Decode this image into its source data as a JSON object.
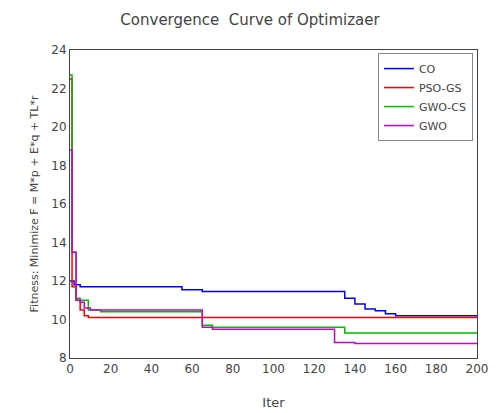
{
  "chart_data": {
    "type": "line",
    "title": "Convergence  Curve of Optimizaer",
    "xlabel": "Iter",
    "ylabel": "Fitness: Minimize F = M*p + E*q + TL*r",
    "xlim": [
      0,
      200
    ],
    "ylim": [
      8,
      24
    ],
    "xticks": [
      0,
      20,
      40,
      60,
      80,
      100,
      120,
      140,
      160,
      180,
      200
    ],
    "yticks": [
      8,
      10,
      12,
      14,
      16,
      18,
      20,
      22,
      24
    ],
    "grid": false,
    "legend": "upper right",
    "series": [
      {
        "name": "CO",
        "color": "#0000FF",
        "x": [
          0,
          2,
          2,
          5,
          5,
          55,
          55,
          65,
          65,
          130,
          130,
          135,
          135,
          140,
          140,
          145,
          145,
          150,
          150,
          155,
          155,
          160,
          160,
          200
        ],
        "values": [
          12,
          12,
          11.8,
          11.8,
          11.7,
          11.7,
          11.55,
          11.55,
          11.45,
          11.45,
          11.45,
          11.45,
          11.1,
          11.1,
          10.8,
          10.8,
          10.55,
          10.55,
          10.45,
          10.45,
          10.3,
          10.3,
          10.2,
          10.2
        ]
      },
      {
        "name": "PSO-GS",
        "color": "#FF0000",
        "x": [
          0,
          1,
          1,
          3,
          3,
          5,
          5,
          7,
          7,
          9,
          9,
          11,
          11,
          200
        ],
        "values": [
          22.5,
          22.5,
          11.7,
          11.7,
          11.0,
          11.0,
          10.5,
          10.5,
          10.2,
          10.2,
          10.1,
          10.1,
          10.1,
          10.1
        ]
      },
      {
        "name": "GWO-CS",
        "color": "#00BB00",
        "x": [
          0,
          1,
          1,
          3,
          3,
          5,
          5,
          9,
          9,
          15,
          15,
          20,
          20,
          40,
          40,
          65,
          65,
          70,
          70,
          130,
          130,
          135,
          135,
          200
        ],
        "values": [
          22.7,
          22.7,
          13.5,
          13.5,
          11.1,
          11.1,
          11.0,
          11.0,
          10.5,
          10.5,
          10.4,
          10.4,
          10.4,
          10.4,
          10.4,
          10.4,
          9.7,
          9.7,
          9.6,
          9.6,
          9.6,
          9.6,
          9.3,
          9.3
        ]
      },
      {
        "name": "GWO",
        "color": "#CC00CC",
        "x": [
          0,
          1,
          1,
          3,
          3,
          5,
          5,
          7,
          7,
          10,
          10,
          20,
          20,
          65,
          65,
          70,
          70,
          120,
          120,
          130,
          130,
          140,
          140,
          200
        ],
        "values": [
          18.8,
          18.8,
          13.5,
          13.5,
          11.0,
          11.0,
          10.9,
          10.9,
          10.6,
          10.6,
          10.5,
          10.5,
          10.5,
          10.5,
          9.6,
          9.6,
          9.5,
          9.5,
          9.5,
          9.5,
          8.8,
          8.8,
          8.75,
          8.75
        ]
      }
    ]
  }
}
